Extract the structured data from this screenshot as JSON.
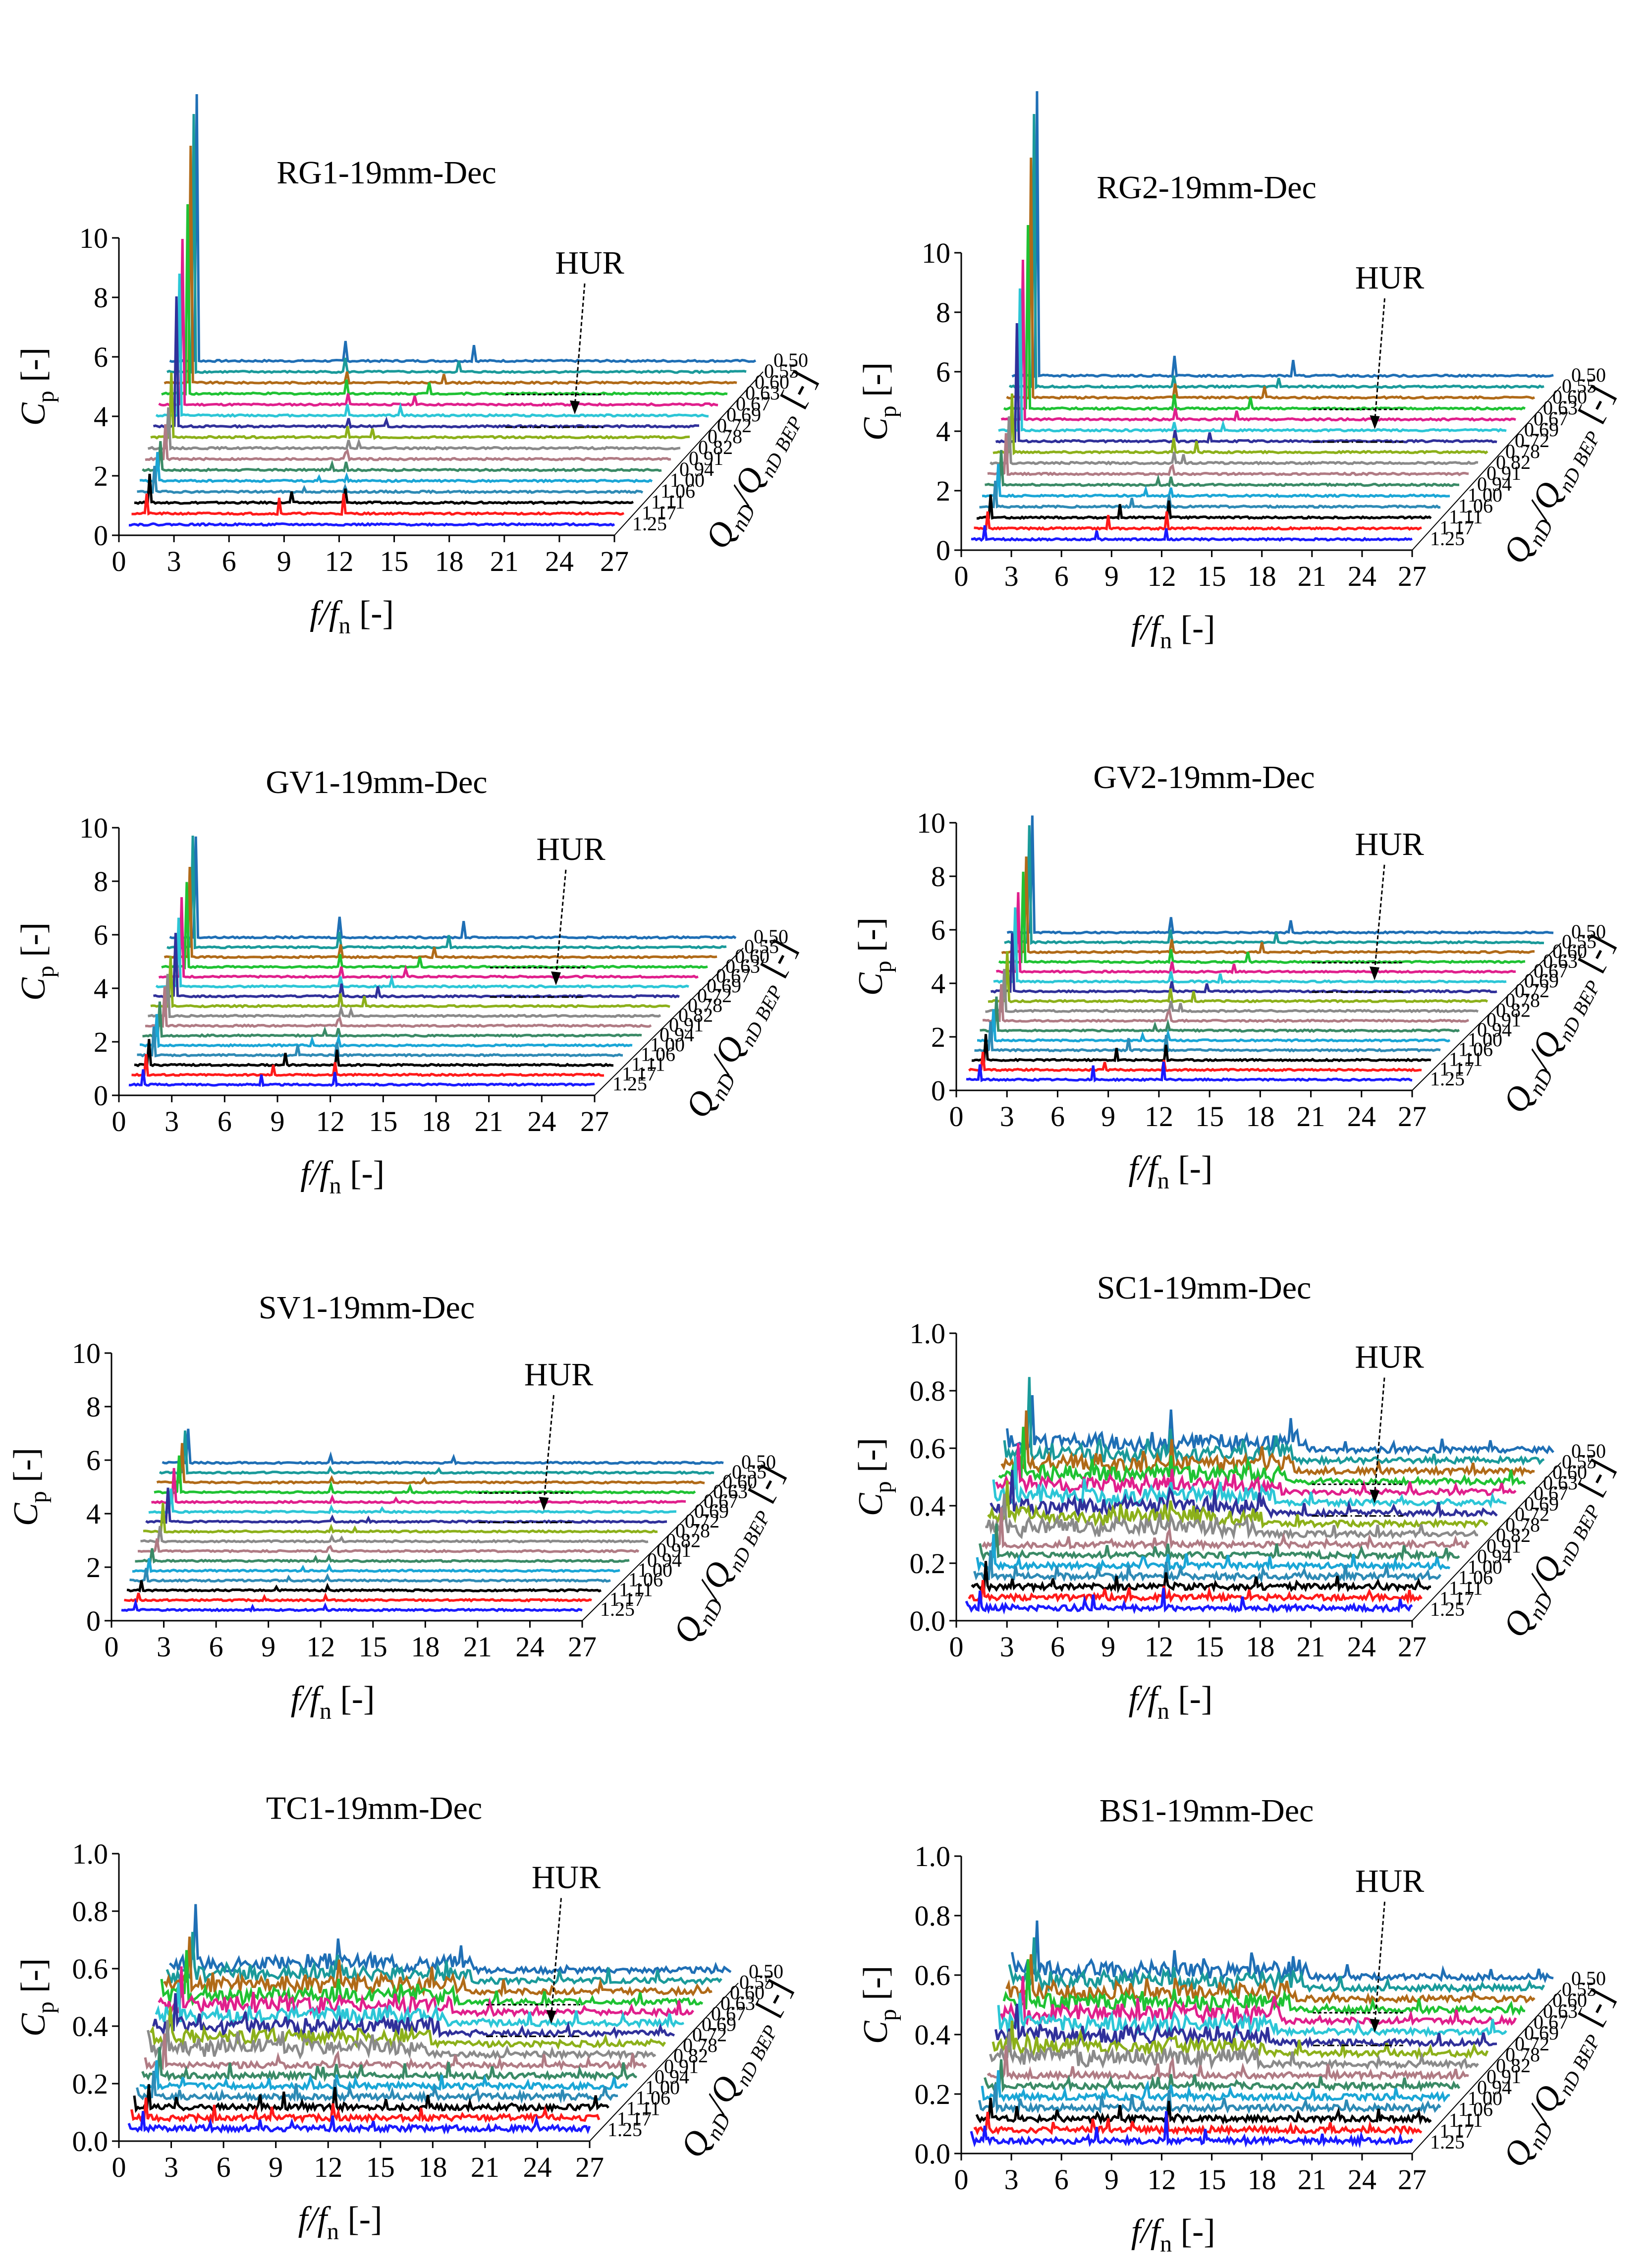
{
  "figure": {
    "description_free": true,
    "series_colors": [
      "#1f6fb5",
      "#1a9a9a",
      "#b06a18",
      "#1fc233",
      "#e01f8c",
      "#2cc6d6",
      "#30309a",
      "#8cb01a",
      "#8a8a8a",
      "#b07b84",
      "#3a8a66",
      "#1aa6d6",
      "#2e8ab5",
      "#000000",
      "#ff1a1a",
      "#1a1aff"
    ]
  },
  "chart_data": [
    {
      "type": "waterfall-spectrum",
      "title": "RG1-19mm-Dec",
      "xlabel": "f/f",
      "xlabel_sub": "n",
      "xunit": "[-]",
      "ylabel": "C",
      "ylabel_sub": "p",
      "yunit": "[-]",
      "zlabel": "Q",
      "zlabel_sub1": "nD",
      "zlabel_mid": "/Q",
      "zlabel_sub2": "nD BEP",
      "zunit": "[-]",
      "annotation": "HUR",
      "xticks": [
        "0",
        "3",
        "6",
        "9",
        "12",
        "15",
        "18",
        "21",
        "24",
        "27"
      ],
      "yticks": [
        "0",
        "2",
        "4",
        "6",
        "8",
        "10"
      ],
      "ylim": [
        0,
        10
      ],
      "xlim": [
        0,
        27
      ],
      "flow_ratios": [
        "0.50",
        "0.55",
        "0.60",
        "0.63",
        "0.67",
        "0.69",
        "0.72",
        "0.78",
        "0.82",
        "0.91",
        "0.94",
        "1.00",
        "1.06",
        "1.11",
        "1.17",
        "1.25"
      ],
      "first_peak": [
        9.0,
        8.7,
        8.0,
        6.4,
        5.6,
        4.8,
        4.4,
        2.2,
        1.4,
        1.2,
        1.0,
        1.0,
        0.9,
        1.0,
        0.7,
        0.0
      ],
      "harmonic_peak": [
        0.7,
        0.5,
        0.4,
        0.5,
        0.4,
        0.4,
        0.3,
        0.4,
        0.3,
        0.3,
        0.3,
        0.2,
        0.2,
        0.5,
        0.7,
        0.0
      ],
      "style": "low"
    },
    {
      "type": "waterfall-spectrum",
      "title": "RG2-19mm-Dec",
      "xlabel": "f/f",
      "xlabel_sub": "n",
      "xunit": "[-]",
      "ylabel": "C",
      "ylabel_sub": "p",
      "yunit": "[-]",
      "zlabel": "Q",
      "zlabel_sub1": "nD",
      "zlabel_mid": "/Q",
      "zlabel_sub2": "nD BEP",
      "zunit": "[-]",
      "annotation": "HUR",
      "xticks": [
        "0",
        "3",
        "6",
        "9",
        "12",
        "15",
        "18",
        "21",
        "24",
        "27"
      ],
      "yticks": [
        "0",
        "2",
        "4",
        "6",
        "8",
        "10"
      ],
      "ylim": [
        0,
        10
      ],
      "xlim": [
        0,
        27
      ],
      "flow_ratios": [
        "0.50",
        "0.55",
        "0.60",
        "0.63",
        "0.67",
        "0.69",
        "0.72",
        "0.78",
        "0.82",
        "0.91",
        "0.94",
        "1.00",
        "1.06",
        "1.11",
        "1.17",
        "1.25"
      ],
      "first_peak": [
        9.6,
        9.2,
        8.1,
        6.2,
        5.4,
        4.8,
        4.0,
        2.0,
        1.6,
        1.4,
        1.2,
        1.1,
        0.9,
        0.8,
        0.6,
        0.5
      ],
      "harmonic_peak": [
        0.7,
        0.4,
        0.5,
        0.5,
        0.4,
        0.3,
        0.4,
        0.5,
        0.4,
        0.3,
        0.3,
        0.3,
        0.4,
        0.6,
        0.6,
        0.4
      ],
      "style": "low"
    },
    {
      "type": "waterfall-spectrum",
      "title": "GV1-19mm-Dec",
      "xlabel": "f/f",
      "xlabel_sub": "n",
      "xunit": "[-]",
      "ylabel": "C",
      "ylabel_sub": "p",
      "yunit": "[-]",
      "zlabel": "Q",
      "zlabel_sub1": "nD",
      "zlabel_mid": "/Q",
      "zlabel_sub2": "nD BEP",
      "zunit": "[-]",
      "annotation": "HUR",
      "xticks": [
        "0",
        "3",
        "6",
        "9",
        "12",
        "15",
        "18",
        "21",
        "24",
        "27"
      ],
      "yticks": [
        "0",
        "2",
        "4",
        "6",
        "8",
        "10"
      ],
      "ylim": [
        0,
        10
      ],
      "xlim": [
        0,
        27
      ],
      "flow_ratios": [
        "0.50",
        "0.55",
        "0.60",
        "0.63",
        "0.67",
        "0.69",
        "0.72",
        "0.78",
        "0.82",
        "0.91",
        "0.94",
        "1.00",
        "1.06",
        "1.11",
        "1.17",
        "1.25"
      ],
      "first_peak": [
        3.8,
        4.2,
        3.4,
        3.2,
        3.0,
        2.6,
        2.4,
        1.9,
        1.6,
        1.5,
        1.3,
        1.2,
        1.1,
        1.0,
        0.8,
        0.6
      ],
      "harmonic_peak": [
        0.8,
        0.6,
        0.5,
        0.5,
        0.4,
        0.4,
        0.5,
        0.5,
        0.3,
        0.3,
        0.3,
        0.3,
        0.5,
        0.6,
        0.5,
        0.5
      ],
      "style": "low"
    },
    {
      "type": "waterfall-spectrum",
      "title": "GV2-19mm-Dec",
      "xlabel": "f/f",
      "xlabel_sub": "n",
      "xunit": "[-]",
      "ylabel": "C",
      "ylabel_sub": "p",
      "yunit": "[-]",
      "zlabel": "Q",
      "zlabel_sub1": "nD",
      "zlabel_mid": "/Q",
      "zlabel_sub2": "nD BEP",
      "zunit": "[-]",
      "annotation": "HUR",
      "xticks": [
        "0",
        "3",
        "6",
        "9",
        "12",
        "15",
        "18",
        "21",
        "24",
        "27"
      ],
      "yticks": [
        "0",
        "2",
        "4",
        "6",
        "8",
        "10"
      ],
      "ylim": [
        0,
        10
      ],
      "xlim": [
        0,
        27
      ],
      "flow_ratios": [
        "0.50",
        "0.55",
        "0.60",
        "0.63",
        "0.67",
        "0.69",
        "0.72",
        "0.78",
        "0.82",
        "0.91",
        "0.94",
        "1.00",
        "1.06",
        "1.11",
        "1.17",
        "1.25"
      ],
      "first_peak": [
        4.4,
        4.4,
        3.6,
        3.4,
        3.0,
        2.8,
        2.2,
        1.9,
        1.6,
        1.4,
        1.3,
        1.2,
        1.1,
        1.0,
        0.7,
        0.6
      ],
      "harmonic_peak": [
        0.6,
        0.5,
        0.5,
        0.5,
        0.4,
        0.4,
        0.4,
        0.5,
        0.4,
        0.4,
        0.3,
        0.3,
        0.6,
        0.6,
        0.4,
        0.7
      ],
      "style": "low"
    },
    {
      "type": "waterfall-spectrum",
      "title": "SV1-19mm-Dec",
      "xlabel": "f/f",
      "xlabel_sub": "n",
      "xunit": "[-]",
      "ylabel": "C",
      "ylabel_sub": "p",
      "yunit": "[-]",
      "zlabel": "Q",
      "zlabel_sub1": "nD",
      "zlabel_mid": "/Q",
      "zlabel_sub2": "nD BEP",
      "zunit": "[-]",
      "annotation": "HUR",
      "xticks": [
        "0",
        "3",
        "6",
        "9",
        "12",
        "15",
        "18",
        "21",
        "24",
        "27"
      ],
      "yticks": [
        "0",
        "2",
        "4",
        "6",
        "8",
        "10"
      ],
      "ylim": [
        0,
        10
      ],
      "xlim": [
        0,
        27
      ],
      "flow_ratios": [
        "0.50",
        "0.55",
        "0.60",
        "0.63",
        "0.67",
        "0.69",
        "0.72",
        "0.78",
        "0.82",
        "0.91",
        "0.94",
        "1.00",
        "1.06",
        "1.11",
        "1.17",
        "1.25"
      ],
      "first_peak": [
        1.3,
        1.6,
        1.5,
        1.4,
        1.3,
        0.9,
        1.3,
        1.1,
        0.6,
        0.5,
        0.5,
        0.5,
        0.5,
        0.4,
        0.3,
        0.3
      ],
      "harmonic_peak": [
        0.3,
        0.2,
        0.2,
        0.3,
        0.2,
        0.2,
        0.2,
        0.2,
        0.2,
        0.2,
        0.2,
        0.2,
        0.2,
        0.2,
        0.2,
        0.2
      ],
      "style": "low"
    },
    {
      "type": "waterfall-spectrum",
      "title": "SC1-19mm-Dec",
      "xlabel": "f/f",
      "xlabel_sub": "n",
      "xunit": "[-]",
      "ylabel": "C",
      "ylabel_sub": "p",
      "yunit": "[-]",
      "zlabel": "Q",
      "zlabel_sub1": "nD",
      "zlabel_mid": "/Q",
      "zlabel_sub2": "nD BEP",
      "zunit": "[-]",
      "annotation": "HUR",
      "xticks": [
        "0",
        "3",
        "6",
        "9",
        "12",
        "15",
        "18",
        "21",
        "24",
        "27"
      ],
      "yticks": [
        "0.0",
        "0.2",
        "0.4",
        "0.6",
        "0.8",
        "1.0"
      ],
      "ylim": [
        0,
        1.0
      ],
      "xlim": [
        0,
        27
      ],
      "flow_ratios": [
        "0.50",
        "0.55",
        "0.60",
        "0.63",
        "0.67",
        "0.69",
        "0.72",
        "0.78",
        "0.82",
        "0.91",
        "0.94",
        "1.00",
        "1.06",
        "1.11",
        "1.17",
        "1.25"
      ],
      "first_peak": [
        0.2,
        0.3,
        0.22,
        0.2,
        0.18,
        0.17,
        0.16,
        0.16,
        0.15,
        0.14,
        0.12,
        0.12,
        0.1,
        0.1,
        0.07,
        0.07
      ],
      "harmonic_peak": [
        0.15,
        0.12,
        0.12,
        0.1,
        0.09,
        0.08,
        0.08,
        0.09,
        0.07,
        0.06,
        0.05,
        0.05,
        0.06,
        0.06,
        0.05,
        0.07
      ],
      "style": "rich"
    },
    {
      "type": "waterfall-spectrum",
      "title": "TC1-19mm-Dec",
      "xlabel": "f/f",
      "xlabel_sub": "n",
      "xunit": "[-]",
      "ylabel": "C",
      "ylabel_sub": "p",
      "yunit": "[-]",
      "zlabel": "Q",
      "zlabel_sub1": "nD",
      "zlabel_mid": "/Q",
      "zlabel_sub2": "nD BEP",
      "zunit": "[-]",
      "annotation": "HUR",
      "xticks": [
        "0",
        "3",
        "6",
        "9",
        "12",
        "15",
        "18",
        "21",
        "24",
        "27"
      ],
      "yticks": [
        "0.0",
        "0.2",
        "0.4",
        "0.6",
        "0.8",
        "1.0"
      ],
      "ylim": [
        0,
        1.0
      ],
      "xlim": [
        0,
        27
      ],
      "flow_ratios": [
        "0.50",
        "0.55",
        "0.60",
        "0.63",
        "0.67",
        "0.69",
        "0.72",
        "0.78",
        "0.82",
        "0.91",
        "0.94",
        "1.00",
        "1.06",
        "1.11",
        "1.17",
        "1.25"
      ],
      "first_peak": [
        0.24,
        0.18,
        0.2,
        0.19,
        0.17,
        0.15,
        0.15,
        0.14,
        0.13,
        0.12,
        0.11,
        0.1,
        0.1,
        0.09,
        0.08,
        0.07
      ],
      "harmonic_peak": [
        0.12,
        0.1,
        0.12,
        0.09,
        0.07,
        0.07,
        0.06,
        0.06,
        0.05,
        0.05,
        0.05,
        0.05,
        0.07,
        0.08,
        0.06,
        0.05
      ],
      "style": "rich"
    },
    {
      "type": "waterfall-spectrum",
      "title": "BS1-19mm-Dec",
      "xlabel": "f/f",
      "xlabel_sub": "n",
      "xunit": "[-]",
      "ylabel": "C",
      "ylabel_sub": "p",
      "yunit": "[-]",
      "zlabel": "Q",
      "zlabel_sub1": "nD",
      "zlabel_mid": "/Q",
      "zlabel_sub2": "nD BEP",
      "zunit": "[-]",
      "annotation": "HUR",
      "xticks": [
        "0",
        "3",
        "6",
        "9",
        "12",
        "15",
        "18",
        "21",
        "24",
        "27"
      ],
      "yticks": [
        "0.0",
        "0.2",
        "0.4",
        "0.6",
        "0.8",
        "1.0"
      ],
      "ylim": [
        0,
        1.0
      ],
      "xlim": [
        0,
        27
      ],
      "flow_ratios": [
        "0.50",
        "0.55",
        "0.60",
        "0.63",
        "0.67",
        "0.69",
        "0.72",
        "0.78",
        "0.82",
        "0.91",
        "0.94",
        "1.00",
        "1.06",
        "1.11",
        "1.17",
        "1.25"
      ],
      "first_peak": [
        0.2,
        0.18,
        0.16,
        0.18,
        0.16,
        0.14,
        0.14,
        0.12,
        0.12,
        0.11,
        0.1,
        0.1,
        0.09,
        0.08,
        0.07,
        0.06
      ],
      "harmonic_peak": [
        0.1,
        0.08,
        0.08,
        0.08,
        0.07,
        0.07,
        0.06,
        0.06,
        0.05,
        0.06,
        0.05,
        0.05,
        0.07,
        0.07,
        0.06,
        0.07
      ],
      "style": "rich"
    }
  ]
}
